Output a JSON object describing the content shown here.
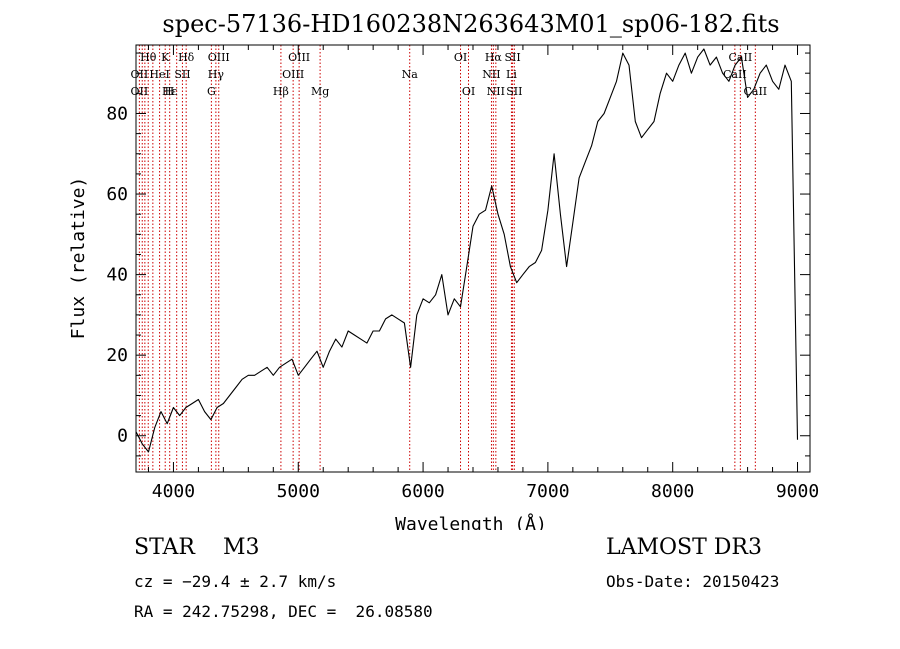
{
  "chart_data": {
    "type": "line",
    "title": "spec-57136-HD160238N263643M01_sp06-182.fits",
    "xlabel": "Wavelength (Å)",
    "ylabel": "Flux (relative)",
    "xlim": [
      3700,
      9100
    ],
    "ylim": [
      -9,
      97
    ],
    "xticks": [
      4000,
      5000,
      6000,
      7000,
      8000,
      9000
    ],
    "yticks": [
      0,
      20,
      40,
      60,
      80
    ],
    "series": [
      {
        "name": "spectrum",
        "color": "#000000",
        "x": [
          3700,
          3750,
          3800,
          3850,
          3900,
          3950,
          4000,
          4050,
          4100,
          4150,
          4200,
          4250,
          4300,
          4350,
          4400,
          4450,
          4500,
          4550,
          4600,
          4650,
          4700,
          4750,
          4800,
          4850,
          4900,
          4950,
          5000,
          5050,
          5100,
          5150,
          5200,
          5250,
          5300,
          5350,
          5400,
          5450,
          5500,
          5550,
          5600,
          5650,
          5700,
          5750,
          5800,
          5850,
          5900,
          5950,
          6000,
          6050,
          6100,
          6150,
          6200,
          6250,
          6300,
          6350,
          6400,
          6450,
          6500,
          6550,
          6600,
          6650,
          6700,
          6750,
          6800,
          6850,
          6900,
          6950,
          7000,
          7050,
          7100,
          7150,
          7200,
          7250,
          7300,
          7350,
          7400,
          7450,
          7500,
          7550,
          7600,
          7650,
          7700,
          7750,
          7800,
          7850,
          7900,
          7950,
          8000,
          8050,
          8100,
          8150,
          8200,
          8250,
          8300,
          8350,
          8400,
          8450,
          8500,
          8550,
          8600,
          8650,
          8700,
          8750,
          8800,
          8850,
          8900,
          8950,
          9000
        ],
        "y": [
          1,
          -2,
          -4,
          2,
          6,
          3,
          7,
          5,
          7,
          8,
          9,
          6,
          4,
          7,
          8,
          10,
          12,
          14,
          15,
          15,
          16,
          17,
          15,
          17,
          18,
          19,
          15,
          17,
          19,
          21,
          17,
          21,
          24,
          22,
          26,
          25,
          24,
          23,
          26,
          26,
          29,
          30,
          29,
          28,
          17,
          30,
          34,
          33,
          35,
          40,
          30,
          34,
          32,
          42,
          52,
          55,
          56,
          62,
          55,
          50,
          42,
          38,
          40,
          42,
          43,
          46,
          56,
          70,
          55,
          42,
          53,
          64,
          68,
          72,
          78,
          80,
          84,
          88,
          95,
          92,
          78,
          74,
          76,
          78,
          85,
          90,
          88,
          92,
          95,
          90,
          94,
          96,
          92,
          94,
          90,
          88,
          92,
          94,
          84,
          86,
          90,
          92,
          88,
          86,
          92,
          88,
          -1
        ]
      }
    ],
    "line_labels": [
      {
        "row": 0,
        "text": "Hθ",
        "wl": 3798
      },
      {
        "row": 0,
        "text": "K",
        "wl": 3934
      },
      {
        "row": 0,
        "text": "Hδ",
        "wl": 4102
      },
      {
        "row": 0,
        "text": "OIII",
        "wl": 4363
      },
      {
        "row": 0,
        "text": "OIII",
        "wl": 5007
      },
      {
        "row": 0,
        "text": "OI",
        "wl": 6300
      },
      {
        "row": 0,
        "text": "Hα",
        "wl": 6563
      },
      {
        "row": 0,
        "text": "SII",
        "wl": 6717
      },
      {
        "row": 0,
        "text": "CaII",
        "wl": 8542
      },
      {
        "row": 1,
        "text": "OII",
        "wl": 3727
      },
      {
        "row": 1,
        "text": "HeI",
        "wl": 3889
      },
      {
        "row": 1,
        "text": "SII",
        "wl": 4072
      },
      {
        "row": 1,
        "text": "Hγ",
        "wl": 4340
      },
      {
        "row": 1,
        "text": "OIII",
        "wl": 4959
      },
      {
        "row": 1,
        "text": "Na",
        "wl": 5893
      },
      {
        "row": 1,
        "text": "NII",
        "wl": 6548
      },
      {
        "row": 1,
        "text": "Li",
        "wl": 6708
      },
      {
        "row": 1,
        "text": "CaII",
        "wl": 8498
      },
      {
        "row": 2,
        "text": "OII",
        "wl": 3727
      },
      {
        "row": 2,
        "text": "Hε",
        "wl": 3970
      },
      {
        "row": 2,
        "text": "H",
        "wl": 3968
      },
      {
        "row": 2,
        "text": "G",
        "wl": 4304
      },
      {
        "row": 2,
        "text": "Hβ",
        "wl": 4861
      },
      {
        "row": 2,
        "text": "Mg",
        "wl": 5175
      },
      {
        "row": 2,
        "text": "OI",
        "wl": 6364
      },
      {
        "row": 2,
        "text": "NII",
        "wl": 6583
      },
      {
        "row": 2,
        "text": "SII",
        "wl": 6731
      },
      {
        "row": 2,
        "text": "CaII",
        "wl": 8662
      }
    ],
    "line_markers_wl": [
      3727,
      3750,
      3771,
      3798,
      3835,
      3889,
      3934,
      3970,
      4026,
      4072,
      4102,
      4304,
      4340,
      4363,
      4861,
      4959,
      5007,
      5175,
      5893,
      6300,
      6364,
      6548,
      6563,
      6583,
      6708,
      6717,
      6731,
      8498,
      8542,
      8662
    ],
    "marker_color": "#cc0000"
  },
  "info": {
    "object": "STAR    M3",
    "cz": "cz = −29.4 ± 2.7 km/s",
    "radec": "RA = 242.75298, DEC =  26.08580",
    "source": "LAMOST DR3",
    "obs_date": "Obs-Date: 20150423"
  }
}
